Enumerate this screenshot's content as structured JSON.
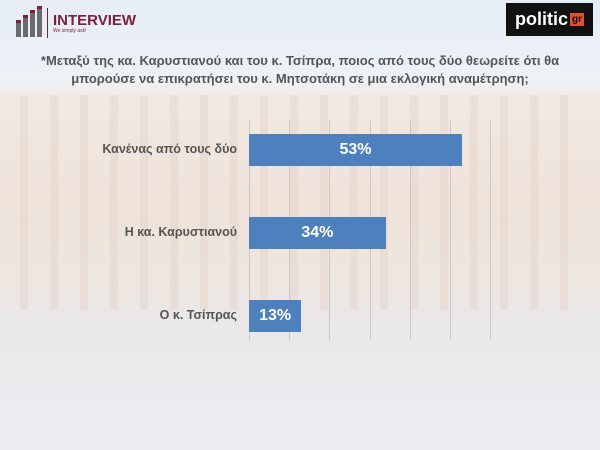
{
  "header": {
    "logo_title": "INTERVIEW",
    "logo_tagline": "We simply ask!",
    "partner_logo": "politic",
    "partner_logo_suffix": "gr"
  },
  "question": "*Μεταξύ της κα. Καρυστιανού και του κ. Τσίπρα, ποιος από τους δύο θεωρείτε ότι θα μπορούσε να επικρατήσει του κ. Μητσοτάκη σε μια εκλογική αναμέτρηση;",
  "colors": {
    "bar": "#4e80bd",
    "brand": "#7b1f3a"
  },
  "chart_data": {
    "type": "bar",
    "orientation": "horizontal",
    "categories": [
      "Κανένας από τους δύο",
      "Η κα. Καρυστιανού",
      "Ο κ. Τσίπρας"
    ],
    "values": [
      53,
      34,
      13
    ],
    "data_labels": [
      "53%",
      "34%",
      "13%"
    ],
    "xlim": [
      0,
      60
    ],
    "grid": true
  }
}
